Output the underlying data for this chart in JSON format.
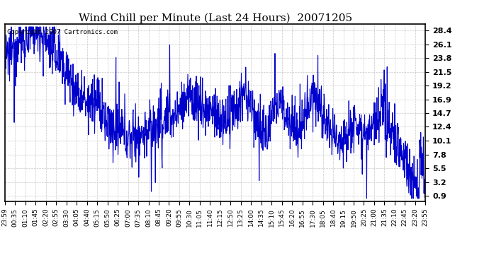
{
  "title": "Wind Chill per Minute (Last 24 Hours)  20071205",
  "copyright_text": "Copyright 2007 Cartronics.com",
  "line_color": "#0000CC",
  "background_color": "#ffffff",
  "plot_bg_color": "#ffffff",
  "yticks": [
    0.9,
    3.2,
    5.5,
    7.8,
    10.1,
    12.4,
    14.7,
    16.9,
    19.2,
    21.5,
    23.8,
    26.1,
    28.4
  ],
  "ylim": [
    0.0,
    29.5
  ],
  "xtick_labels": [
    "23:59",
    "00:35",
    "01:10",
    "01:45",
    "02:20",
    "02:55",
    "03:30",
    "04:05",
    "04:40",
    "05:15",
    "05:50",
    "06:25",
    "07:00",
    "07:35",
    "08:10",
    "08:45",
    "09:20",
    "09:55",
    "10:30",
    "11:05",
    "11:40",
    "12:15",
    "12:50",
    "13:25",
    "14:00",
    "14:35",
    "15:10",
    "15:45",
    "16:20",
    "16:55",
    "17:30",
    "18:05",
    "18:40",
    "19:15",
    "19:50",
    "20:25",
    "21:00",
    "21:35",
    "22:10",
    "22:45",
    "23:20",
    "23:55"
  ],
  "grid_color": "#c8c8c8",
  "grid_linestyle": "--",
  "title_fontsize": 11,
  "ylabel_fontsize": 8,
  "xlabel_fontsize": 6.5,
  "line_width": 0.8
}
